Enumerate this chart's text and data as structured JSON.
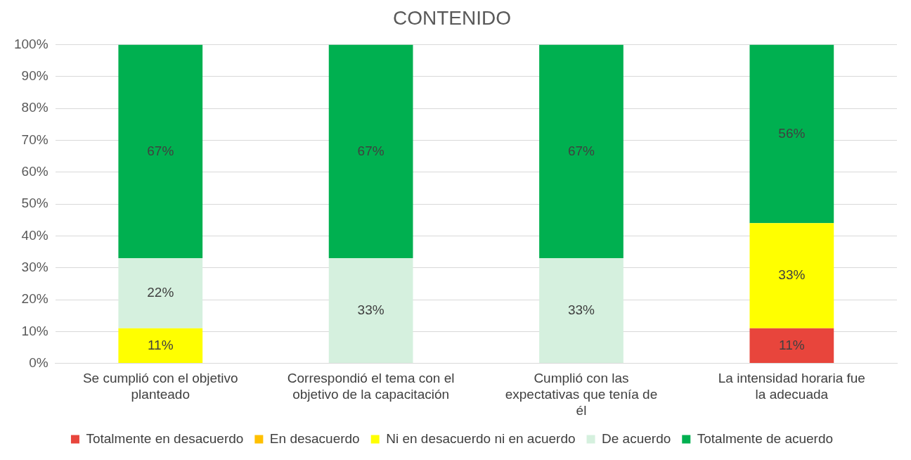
{
  "chart_data": {
    "type": "bar",
    "title": "CONTENIDO",
    "stacked": true,
    "categories": [
      "Se cumplió con el objetivo planteado",
      "Correspondió el tema con el objetivo de la capacitación",
      "Cumplió con las expectativas que tenía de él",
      "La intensidad horaria fue la adecuada"
    ],
    "series": [
      {
        "name": "Totalmente en desacuerdo",
        "color": "#e8453c",
        "values": [
          null,
          null,
          null,
          11
        ],
        "value_labels": [
          null,
          null,
          null,
          "11%"
        ]
      },
      {
        "name": "En desacuerdo",
        "color": "#ffc000",
        "values": [
          null,
          null,
          null,
          null
        ],
        "value_labels": [
          null,
          null,
          null,
          null
        ]
      },
      {
        "name": "Ni en desacuerdo ni en acuerdo",
        "color": "#ffff00",
        "values": [
          11,
          null,
          null,
          33
        ],
        "value_labels": [
          "11%",
          null,
          null,
          "33%"
        ]
      },
      {
        "name": "De acuerdo",
        "color": "#d5f0de",
        "values": [
          22,
          33,
          33,
          null
        ],
        "value_labels": [
          "22%",
          "33%",
          "33%",
          null
        ]
      },
      {
        "name": "Totalmente de acuerdo",
        "color": "#00b050",
        "values": [
          67,
          67,
          67,
          56
        ],
        "value_labels": [
          "67%",
          "67%",
          "67%",
          "56%"
        ]
      }
    ],
    "ylim": [
      0,
      100
    ],
    "yticks": [
      {
        "value": 0,
        "label": "0%"
      },
      {
        "value": 10,
        "label": "10%"
      },
      {
        "value": 20,
        "label": "20%"
      },
      {
        "value": 30,
        "label": "30%"
      },
      {
        "value": 40,
        "label": "40%"
      },
      {
        "value": 50,
        "label": "50%"
      },
      {
        "value": 60,
        "label": "60%"
      },
      {
        "value": 70,
        "label": "70%"
      },
      {
        "value": 80,
        "label": "80%"
      },
      {
        "value": 90,
        "label": "90%"
      },
      {
        "value": 100,
        "label": "100%"
      }
    ],
    "grid": "y",
    "legend": "bottom"
  }
}
